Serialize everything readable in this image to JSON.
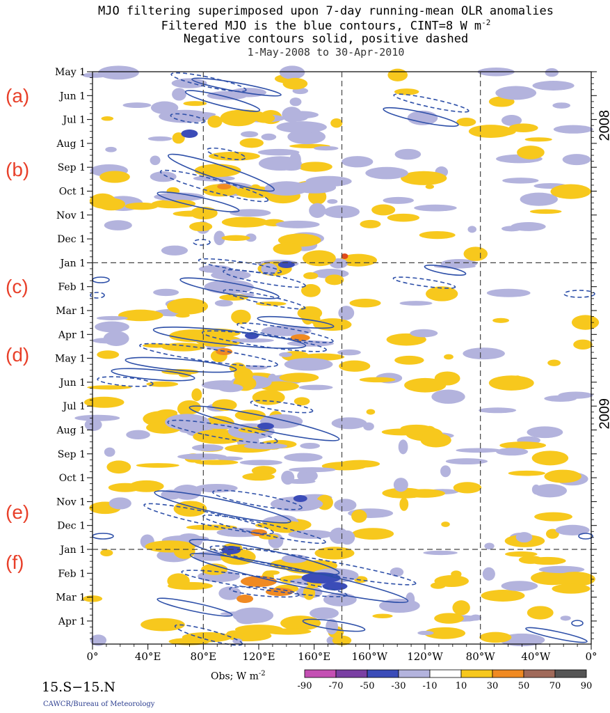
{
  "chart_data": {
    "type": "heatmap",
    "title": "MJO filtering superimposed upon 7-day running-mean OLR anomalies",
    "subtitle_lines": [
      "Filtered MJO is the blue contours, CINT=8 W m",
      "Negative contours solid, positive dashed"
    ],
    "cint_exponent": "-2",
    "date_range": "1-May-2008 to 30-Apr-2010",
    "x_ticks": [
      "0°",
      "40°E",
      "80°E",
      "120°E",
      "160°E",
      "160°W",
      "120°W",
      "80°W",
      "40°W",
      "0°"
    ],
    "x_range": [
      0,
      360
    ],
    "y_ticks": [
      "May 1",
      "Jun 1",
      "Jul 1",
      "Aug 1",
      "Sep 1",
      "Oct 1",
      "Nov 1",
      "Dec 1",
      "Jan 1",
      "Feb 1",
      "Mar 1",
      "Apr 1",
      "May 1",
      "Jun 1",
      "Jul 1",
      "Aug 1",
      "Sep 1",
      "Oct 1",
      "Nov 1",
      "Dec 1",
      "Jan 1",
      "Feb 1",
      "Mar 1",
      "Apr 1"
    ],
    "year_labels": [
      "2008",
      "2009"
    ],
    "latitude_band": "15.S−15.N",
    "colorbar": {
      "label": "Obs; W m",
      "label_exponent": "-2",
      "levels": [
        "-90",
        "-70",
        "-50",
        "-30",
        "-10",
        "10",
        "30",
        "50",
        "70",
        "90"
      ],
      "colors": [
        "#c44fb3",
        "#7a3fa3",
        "#3b4cb8",
        "#b3b3dd",
        "#ffffff",
        "#f7c81d",
        "#f08a22",
        "#a06a5a",
        "#555555"
      ]
    },
    "dashed_reference_lines": {
      "longitudes_deg": [
        80,
        180,
        280
      ],
      "dates": [
        "Jan 1 2009",
        "Jan 1 2010"
      ]
    },
    "mjo_events": [
      {
        "label": "(a)",
        "month": "Jun 1"
      },
      {
        "label": "(b)",
        "month": "Sep 1"
      },
      {
        "label": "(c)",
        "month": "Feb 1"
      },
      {
        "label": "(d)",
        "month": "May 1"
      },
      {
        "label": "(e)",
        "month": "Nov 1"
      },
      {
        "label": "(f)",
        "month": "Feb 1"
      }
    ]
  },
  "credit": "CAWCR/Bureau of Meteorology"
}
